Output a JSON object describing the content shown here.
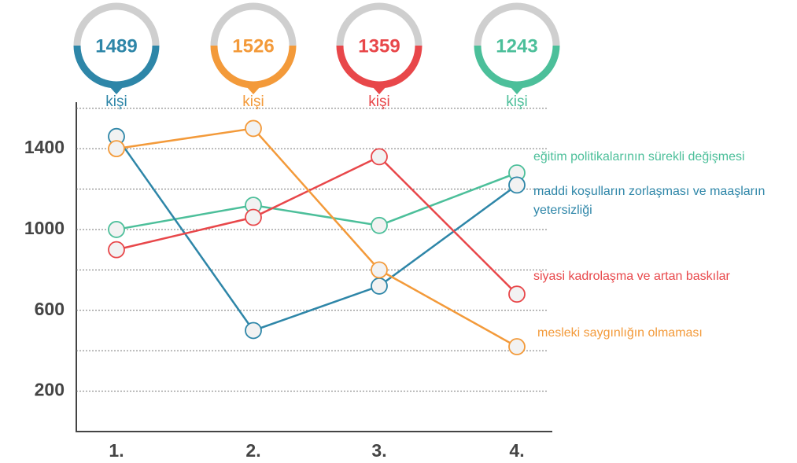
{
  "chart_data": {
    "type": "line",
    "categories": [
      "1.",
      "2.",
      "3.",
      "4."
    ],
    "series": [
      {
        "name": "eğitim politikalarının sürekli değişmesi",
        "color": "#4cbf9a",
        "values": [
          1000,
          1120,
          1020,
          1280
        ]
      },
      {
        "name": "maddi koşulların zorlaşması ve maaşların yetersizliği",
        "color": "#2e86a8",
        "values": [
          1460,
          500,
          720,
          1220
        ]
      },
      {
        "name": "siyasi kadrolaşma ve artan baskılar",
        "color": "#e8474a",
        "values": [
          900,
          1060,
          1360,
          680
        ]
      },
      {
        "name": "mesleki saygınlığın olmaması",
        "color": "#f39a3a",
        "values": [
          1400,
          1500,
          800,
          420
        ]
      }
    ],
    "badges": [
      {
        "value": 1489,
        "unit": "kişi",
        "color": "#2e86a8"
      },
      {
        "value": 1526,
        "unit": "kişi",
        "color": "#f39a3a"
      },
      {
        "value": 1359,
        "unit": "kişi",
        "color": "#e8474a"
      },
      {
        "value": 1243,
        "unit": "kişi",
        "color": "#4cbf9a"
      }
    ],
    "ylim": [
      0,
      1630
    ],
    "yticks": [
      200,
      600,
      1000,
      1400
    ],
    "minor_yticks": [
      400,
      800,
      1200,
      1600
    ],
    "grid": true
  }
}
